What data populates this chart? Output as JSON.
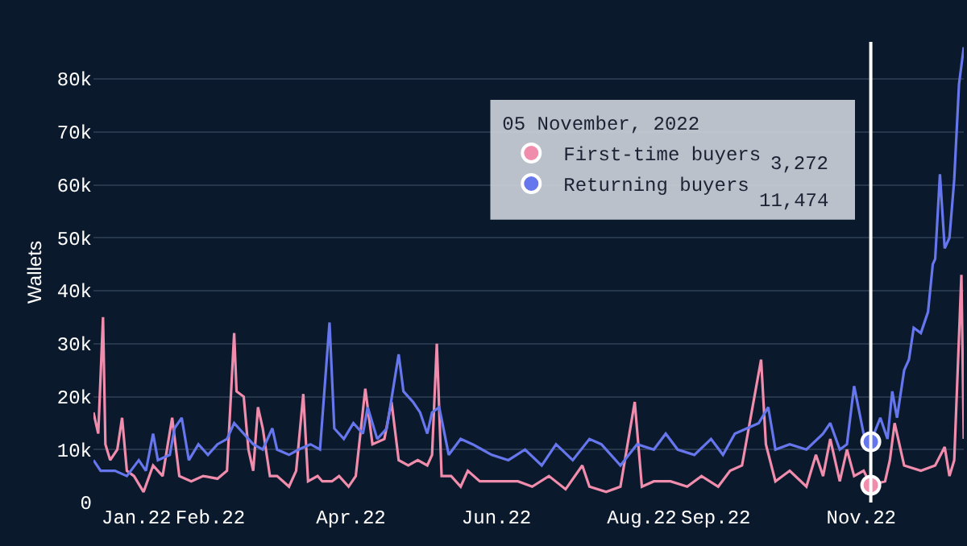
{
  "chart_data": {
    "type": "line",
    "ylabel": "Wallets",
    "xlim": [
      "2021-12-14",
      "2022-12-14"
    ],
    "ylim": [
      0,
      87000
    ],
    "xticks": [
      {
        "value": "2022-01-01",
        "label": "Jan.22"
      },
      {
        "value": "2022-02-01",
        "label": "Feb.22"
      },
      {
        "value": "2022-04-01",
        "label": "Apr.22"
      },
      {
        "value": "2022-06-01",
        "label": "Jun.22"
      },
      {
        "value": "2022-08-01",
        "label": "Aug.22"
      },
      {
        "value": "2022-09-01",
        "label": "Sep.22"
      },
      {
        "value": "2022-11-01",
        "label": "Nov.22"
      }
    ],
    "yticks": [
      0,
      {
        "value": 10000,
        "label": "10k"
      },
      {
        "value": 20000,
        "label": "20k"
      },
      {
        "value": 30000,
        "label": "30k"
      },
      {
        "value": 40000,
        "label": "40k"
      },
      {
        "value": 50000,
        "label": "50k"
      },
      {
        "value": 60000,
        "label": "60k"
      },
      {
        "value": 70000,
        "label": "70k"
      },
      {
        "value": 80000,
        "label": "80k"
      }
    ],
    "grid": "y",
    "legend": "top",
    "legend_title": "05 November, 2022",
    "marker": "none",
    "line_style": "solid",
    "series": [
      {
        "name": "First-time buyers",
        "color": "#f08cac",
        "x": [
          "2021-12-14",
          "2021-12-16",
          "2021-12-18",
          "2021-12-19",
          "2021-12-21",
          "2021-12-24",
          "2021-12-26",
          "2021-12-28",
          "2021-12-31",
          "2022-01-04",
          "2022-01-08",
          "2022-01-12",
          "2022-01-16",
          "2022-01-19",
          "2022-01-24",
          "2022-01-29",
          "2022-02-04",
          "2022-02-08",
          "2022-02-11",
          "2022-02-12",
          "2022-02-15",
          "2022-02-17",
          "2022-02-19",
          "2022-02-21",
          "2022-02-23",
          "2022-02-26",
          "2022-03-01",
          "2022-03-06",
          "2022-03-09",
          "2022-03-12",
          "2022-03-14",
          "2022-03-18",
          "2022-03-20",
          "2022-03-24",
          "2022-03-27",
          "2022-03-31",
          "2022-04-03",
          "2022-04-07",
          "2022-04-10",
          "2022-04-15",
          "2022-04-18",
          "2022-04-21",
          "2022-04-25",
          "2022-04-29",
          "2022-05-03",
          "2022-05-05",
          "2022-05-07",
          "2022-05-09",
          "2022-05-13",
          "2022-05-17",
          "2022-05-20",
          "2022-05-25",
          "2022-05-30",
          "2022-06-10",
          "2022-06-16",
          "2022-06-23",
          "2022-06-30",
          "2022-07-07",
          "2022-07-10",
          "2022-07-17",
          "2022-07-23",
          "2022-07-29",
          "2022-08-01",
          "2022-08-06",
          "2022-08-13",
          "2022-08-20",
          "2022-08-26",
          "2022-09-02",
          "2022-09-07",
          "2022-09-12",
          "2022-09-20",
          "2022-09-22",
          "2022-09-26",
          "2022-10-02",
          "2022-10-09",
          "2022-10-13",
          "2022-10-16",
          "2022-10-19",
          "2022-10-23",
          "2022-10-26",
          "2022-10-29",
          "2022-11-02",
          "2022-11-05",
          "2022-11-11",
          "2022-11-13",
          "2022-11-15",
          "2022-11-19",
          "2022-11-26",
          "2022-12-02",
          "2022-12-06",
          "2022-12-08",
          "2022-12-10",
          "2022-12-13",
          "2022-12-14"
        ],
        "values": [
          17000,
          13000,
          35000,
          11000,
          8000,
          10000,
          16000,
          6000,
          5000,
          2000,
          7000,
          5000,
          16000,
          5000,
          4000,
          5000,
          4500,
          6000,
          32000,
          21000,
          20000,
          10000,
          6000,
          18000,
          14000,
          5000,
          5000,
          3000,
          6000,
          20500,
          4000,
          5000,
          4000,
          4000,
          5000,
          3000,
          5000,
          21500,
          11000,
          12000,
          19000,
          8000,
          7000,
          8000,
          7000,
          9000,
          30000,
          5000,
          5000,
          3000,
          6000,
          4000,
          4000,
          4000,
          3000,
          5000,
          2500,
          7000,
          3000,
          2000,
          3000,
          19000,
          3000,
          4000,
          4000,
          3000,
          5000,
          3000,
          6000,
          7000,
          27000,
          11000,
          4000,
          6000,
          3000,
          9000,
          5000,
          12000,
          4000,
          10000,
          5000,
          6000,
          3272,
          4000,
          8000,
          15000,
          7000,
          6000,
          7000,
          10500,
          5000,
          8000,
          43000,
          12000
        ]
      },
      {
        "name": "Returning buyers",
        "color": "#6676ec",
        "x": [
          "2021-12-14",
          "2021-12-17",
          "2021-12-23",
          "2021-12-28",
          "2022-01-02",
          "2022-01-05",
          "2022-01-08",
          "2022-01-10",
          "2022-01-15",
          "2022-01-17",
          "2022-01-20",
          "2022-01-23",
          "2022-01-27",
          "2022-01-31",
          "2022-02-04",
          "2022-02-08",
          "2022-02-11",
          "2022-02-15",
          "2022-02-19",
          "2022-02-23",
          "2022-02-27",
          "2022-03-01",
          "2022-03-06",
          "2022-03-10",
          "2022-03-15",
          "2022-03-19",
          "2022-03-23",
          "2022-03-25",
          "2022-03-29",
          "2022-04-02",
          "2022-04-06",
          "2022-04-08",
          "2022-04-12",
          "2022-04-16",
          "2022-04-21",
          "2022-04-23",
          "2022-04-27",
          "2022-04-30",
          "2022-05-03",
          "2022-05-05",
          "2022-05-08",
          "2022-05-12",
          "2022-05-17",
          "2022-05-22",
          "2022-05-26",
          "2022-05-30",
          "2022-06-06",
          "2022-06-13",
          "2022-06-20",
          "2022-06-26",
          "2022-07-03",
          "2022-07-10",
          "2022-07-15",
          "2022-07-23",
          "2022-07-30",
          "2022-08-06",
          "2022-08-11",
          "2022-08-16",
          "2022-08-23",
          "2022-08-30",
          "2022-09-04",
          "2022-09-09",
          "2022-09-14",
          "2022-09-19",
          "2022-09-23",
          "2022-09-26",
          "2022-10-02",
          "2022-10-09",
          "2022-10-16",
          "2022-10-19",
          "2022-10-23",
          "2022-10-26",
          "2022-10-29",
          "2022-11-02",
          "2022-11-05",
          "2022-11-09",
          "2022-11-12",
          "2022-11-14",
          "2022-11-16",
          "2022-11-19",
          "2022-11-21",
          "2022-11-23",
          "2022-11-26",
          "2022-11-29",
          "2022-12-01",
          "2022-12-02",
          "2022-12-04",
          "2022-12-06",
          "2022-12-08",
          "2022-12-10",
          "2022-12-12",
          "2022-12-14"
        ],
        "values": [
          8000,
          6000,
          6000,
          5000,
          8000,
          6000,
          13000,
          8000,
          9000,
          14000,
          16000,
          8000,
          11000,
          9000,
          11000,
          12000,
          15000,
          13000,
          11000,
          10000,
          14000,
          10000,
          9000,
          10000,
          11000,
          10000,
          34000,
          14000,
          12000,
          15000,
          13000,
          18000,
          12000,
          14000,
          28000,
          21000,
          19000,
          17000,
          13000,
          17000,
          18000,
          9000,
          12000,
          11000,
          10000,
          9000,
          8000,
          10000,
          7000,
          11000,
          8000,
          12000,
          11000,
          7000,
          11000,
          10000,
          13000,
          10000,
          9000,
          12000,
          9000,
          13000,
          14000,
          15000,
          18000,
          10000,
          11000,
          10000,
          13000,
          15000,
          10000,
          11000,
          22000,
          13000,
          11474,
          16000,
          12000,
          21000,
          16000,
          25000,
          27000,
          33000,
          32000,
          36000,
          45000,
          46000,
          62000,
          48000,
          50000,
          61000,
          79000,
          86000
        ]
      }
    ],
    "ref_lines": [
      {
        "axis": "x",
        "value": "2022-11-05",
        "color": "#ffffff"
      }
    ],
    "annotations": [
      "3,272",
      "11,474"
    ]
  }
}
